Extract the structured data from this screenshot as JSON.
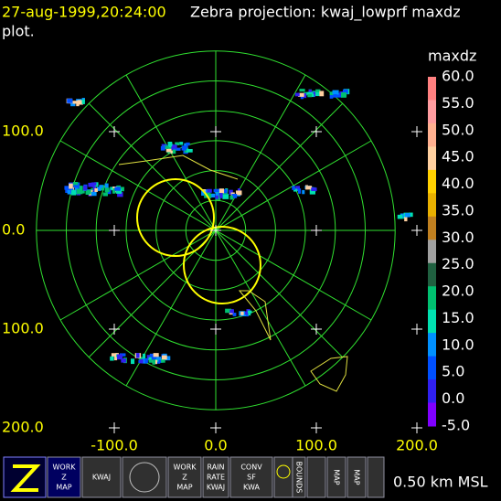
{
  "header": {
    "time": "27-aug-1999,20:24:00",
    "title": "Zebra projection: kwaj_lowprf maxdz",
    "title_cont": "plot."
  },
  "plot": {
    "y_labels": [
      "100.0",
      "0.0",
      "100.0",
      "200.0"
    ],
    "x_labels": [
      "-100.0",
      "0.0",
      "100.0",
      "200.0"
    ]
  },
  "colorbar": {
    "title": "maxdz",
    "labels": [
      "60.0",
      "55.0",
      "50.0",
      "45.0",
      "40.0",
      "35.0",
      "30.0",
      "25.0",
      "20.0",
      "15.0",
      "10.0",
      "5.0",
      "0.0",
      "-5.0"
    ],
    "colors": [
      "#ff8080",
      "#ff9ca0",
      "#ffb090",
      "#ffd0a0",
      "#ffd000",
      "#e8b000",
      "#c08020",
      "#a0a0a0",
      "#206040",
      "#00c070",
      "#00e0b0",
      "#0090ff",
      "#0050ff",
      "#3020f0",
      "#8000ff"
    ]
  },
  "toolbar": {
    "buttons": [
      [
        "WORK",
        "Z",
        "MAP"
      ],
      [
        "KWAJ"
      ],
      [
        "WORK",
        "Z",
        "MAP"
      ],
      [
        "RAIN",
        "RATE",
        "KWAJ"
      ],
      [
        "CONV",
        "SF",
        "KWA"
      ],
      [
        "BOUNDS"
      ],
      [
        "MAP"
      ],
      [
        "MAP"
      ]
    ],
    "status": "0.50 km MSL"
  }
}
